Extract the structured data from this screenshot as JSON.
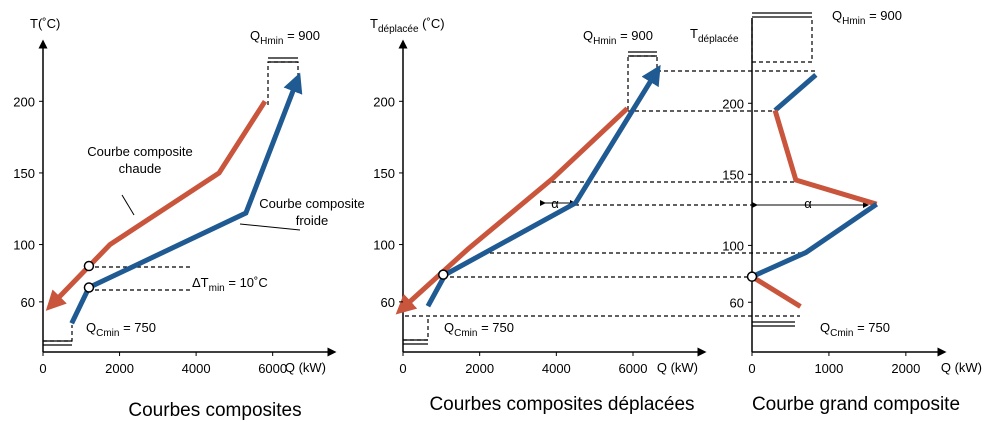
{
  "chart_data": [
    {
      "type": "line",
      "title": "Courbes composites",
      "y_label": "T(˚C)",
      "x_label": "Q (kW)",
      "xlim": [
        0,
        7550
      ],
      "ylim": [
        25,
        240
      ],
      "xticks": [
        0,
        2000,
        4000,
        6000
      ],
      "yticks": [
        60,
        100,
        150,
        200
      ],
      "series": [
        {
          "color": "#c9553c",
          "x": [
            5800,
            4600,
            1750,
            300
          ],
          "values": [
            200,
            150,
            100,
            60
          ]
        },
        {
          "color": "#1f5a93",
          "x": [
            750,
            1200,
            5300,
            6600
          ],
          "values": [
            45,
            70,
            122,
            212
          ]
        }
      ],
      "markers": {
        "x": [
          1200,
          1200
        ],
        "values": [
          85,
          70
        ]
      },
      "hot_label": [
        "Courbe composite",
        "chaude"
      ],
      "cold_label": [
        "Courbe composite",
        "froide"
      ],
      "dt_label": {
        "main": "ΔT",
        "sub": "min",
        "rest": " = 10˚C"
      },
      "qh_label": {
        "main": "Q",
        "sub": "Hmin",
        "rest": " = 900"
      },
      "qc_label": {
        "main": "Q",
        "sub": "Cmin",
        "rest": " = 750"
      }
    },
    {
      "type": "line",
      "title": "Courbes composites déplacées",
      "y_label": {
        "main": "T",
        "sub": "déplacée",
        "rest": " (˚C)"
      },
      "x_label": "Q (kW)",
      "xlim": [
        0,
        7800
      ],
      "ylim": [
        25,
        240
      ],
      "xticks": [
        0,
        2000,
        4000,
        6000
      ],
      "yticks": [
        60,
        100,
        150,
        200
      ],
      "series": [
        {
          "color": "#c9553c",
          "x": [
            5850,
            3900,
            1700,
            50
          ],
          "values": [
            195,
            146,
            97,
            57
          ]
        },
        {
          "color": "#1f5a93",
          "x": [
            650,
            1100,
            4500,
            6550
          ],
          "values": [
            57,
            79,
            129,
            218
          ]
        }
      ],
      "markers": {
        "x": [
          1050
        ],
        "values": [
          79
        ]
      },
      "alpha_label": "α",
      "qh_label": {
        "main": "Q",
        "sub": "Hmin",
        "rest": " = 900"
      },
      "qc_label": {
        "main": "Q",
        "sub": "Cmin",
        "rest": " = 750"
      }
    },
    {
      "type": "line",
      "title": "Courbe grand composite",
      "y_label": {
        "main": "T",
        "sub": "déplacée"
      },
      "x_label": "Q (kW)",
      "xlim": [
        0,
        2470
      ],
      "ylim": [
        25,
        260
      ],
      "xticks": [
        0,
        1000,
        2000
      ],
      "yticks": [
        60,
        100,
        150,
        200
      ],
      "series": [
        {
          "color": "#1f5a93",
          "x": [
            830,
            300
          ],
          "values": [
            220,
            195
          ]
        },
        {
          "color": "#c9553c",
          "x": [
            300,
            570,
            1620
          ],
          "values": [
            195,
            146,
            129
          ]
        },
        {
          "color": "#1f5a93",
          "x": [
            1620,
            700,
            0
          ],
          "values": [
            129,
            95,
            78
          ]
        },
        {
          "color": "#c9553c",
          "x": [
            0,
            630
          ],
          "values": [
            78,
            57
          ]
        }
      ],
      "markers": {
        "x": [
          0
        ],
        "values": [
          78
        ]
      },
      "alpha_label": "α",
      "qh_label": {
        "main": "Q",
        "sub": "Hmin",
        "rest": " = 900"
      },
      "qc_label": {
        "main": "Q",
        "sub": "Cmin",
        "rest": " = 750"
      }
    }
  ]
}
